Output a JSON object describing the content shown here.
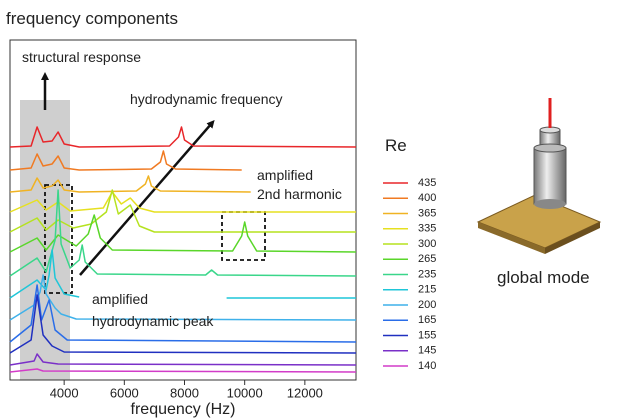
{
  "chart_data": {
    "type": "line",
    "title": "frequency components",
    "xlabel": "frequency (Hz)",
    "legend_title": "Re",
    "xlim": [
      2200,
      13700
    ],
    "xticks": [
      4000,
      6000,
      8000,
      10000,
      12000
    ],
    "ylim": [
      0,
      34
    ],
    "annotations": [
      "structural response",
      "hydrodynamic frequency",
      "amplified",
      "2nd harmonic",
      "amplified",
      "hydrodynamic peak",
      "global mode"
    ],
    "series": [
      {
        "name": "435",
        "color": "#e8262a",
        "x": [
          2200,
          2900,
          3100,
          3300,
          3600,
          3800,
          4000,
          4500,
          7500,
          7800,
          7900,
          8000,
          8300,
          13700
        ],
        "values": [
          23.3,
          23.4,
          25.3,
          23.8,
          23.9,
          24.8,
          23.6,
          23.3,
          23.4,
          24.3,
          25.3,
          24.0,
          23.4,
          23.3
        ]
      },
      {
        "name": "400",
        "color": "#f07a22",
        "x": [
          2200,
          2900,
          3100,
          3300,
          3600,
          3800,
          4000,
          4500,
          6900,
          7200,
          7300,
          7400,
          7700,
          9900
        ],
        "values": [
          21,
          21.2,
          22.6,
          21.4,
          21.6,
          22.4,
          21.2,
          21,
          21.1,
          21.8,
          22.9,
          21.6,
          21.1,
          21
        ]
      },
      {
        "name": "365",
        "color": "#f0b323",
        "x": [
          2200,
          2900,
          3100,
          3300,
          3600,
          3800,
          4000,
          4500,
          6400,
          6700,
          6800,
          6900,
          7200,
          10200
        ],
        "values": [
          18.8,
          19.0,
          20.2,
          19.2,
          19.4,
          20.0,
          19.0,
          18.8,
          18.9,
          19.6,
          20.4,
          19.4,
          18.9,
          18.8
        ]
      },
      {
        "name": "335",
        "color": "#e6e020",
        "x": [
          2200,
          3100,
          3400,
          3800,
          4200,
          5300,
          5600,
          5900,
          6200,
          6500,
          7000,
          13700
        ],
        "values": [
          16.8,
          18.0,
          17.0,
          17.8,
          16.9,
          17.2,
          18.8,
          17.6,
          18.2,
          17.2,
          16.8,
          16.8
        ]
      },
      {
        "name": "300",
        "color": "#b5e21f",
        "x": [
          2200,
          3100,
          3400,
          3800,
          4300,
          4900,
          5400,
          5600,
          5800,
          6200,
          6500,
          7000,
          13700
        ],
        "values": [
          14.8,
          16.2,
          15.0,
          16.0,
          15.2,
          15.6,
          16.8,
          19.0,
          16.6,
          17.5,
          15.4,
          14.8,
          14.8
        ]
      },
      {
        "name": "265",
        "color": "#5ad62a",
        "x": [
          2200,
          3100,
          3400,
          3800,
          4400,
          4800,
          5000,
          5200,
          5600,
          9600,
          9900,
          10000,
          10100,
          10400,
          13700
        ],
        "values": [
          12.8,
          14.2,
          13.0,
          14.5,
          13.4,
          14.6,
          16.5,
          14.2,
          13.0,
          12.9,
          14.4,
          15.8,
          14.4,
          12.9,
          12.8
        ]
      },
      {
        "name": "235",
        "color": "#3ad68a",
        "x": [
          2200,
          3100,
          3400,
          3700,
          3800,
          3900,
          4200,
          4500,
          4600,
          4700,
          5100,
          8700,
          8900,
          9100,
          13700
        ],
        "values": [
          10.4,
          12.2,
          10.8,
          14.0,
          19.0,
          13.6,
          11.2,
          12.0,
          13.5,
          11.8,
          10.6,
          10.5,
          11.0,
          10.5,
          10.4
        ]
      },
      {
        "name": "215",
        "color": "#1fc6d8",
        "x": [
          2200,
          3100,
          3400,
          3500,
          3600,
          3700,
          4000,
          4500,
          5000,
          9400,
          13700
        ],
        "values": [
          8.2,
          10.0,
          9.0,
          10.5,
          13.0,
          10.2,
          8.6,
          8.3,
          null,
          8.2,
          8.2
        ]
      },
      {
        "name": "200",
        "color": "#3fb1ea",
        "x": [
          2200,
          3000,
          3200,
          3300,
          3400,
          3700,
          3900,
          4400,
          13700
        ],
        "values": [
          6,
          7.5,
          8.8,
          10.5,
          8.6,
          7.2,
          6.6,
          6.1,
          6
        ]
      },
      {
        "name": "165",
        "color": "#2a6de8",
        "x": [
          2200,
          2900,
          3100,
          3250,
          3500,
          3700,
          4100,
          13700
        ],
        "values": [
          3.8,
          5.5,
          9.5,
          6.0,
          8.0,
          5.0,
          4.0,
          3.8
        ]
      },
      {
        "name": "155",
        "color": "#2030c0",
        "x": [
          2200,
          2900,
          3100,
          3300,
          3600,
          4000,
          13700
        ],
        "values": [
          2.7,
          4.0,
          8.5,
          4.5,
          3.4,
          2.8,
          2.7
        ]
      },
      {
        "name": "145",
        "color": "#7a30c8",
        "x": [
          2200,
          3000,
          3100,
          3300,
          3800,
          13700
        ],
        "values": [
          1.5,
          1.9,
          2.6,
          1.8,
          1.6,
          1.5
        ]
      },
      {
        "name": "140",
        "color": "#d23cc8",
        "x": [
          2200,
          3100,
          3300,
          13700
        ],
        "values": [
          0.8,
          1.1,
          0.9,
          0.8
        ]
      }
    ]
  }
}
